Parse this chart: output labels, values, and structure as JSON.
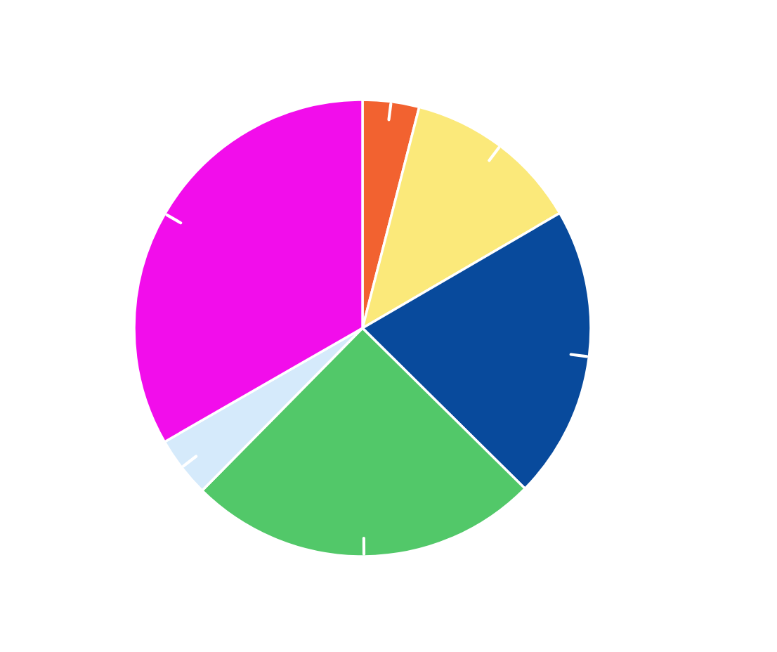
{
  "chart_data": {
    "type": "pie",
    "categories": [
      null,
      null,
      null,
      null,
      null,
      null
    ],
    "values": [
      4,
      12.6,
      20.8,
      25,
      4.3,
      33.3
    ],
    "colors": [
      "#f26230",
      "#fbe97a",
      "#084a9c",
      "#52c869",
      "#d5eafb",
      "#f20deb"
    ]
  }
}
